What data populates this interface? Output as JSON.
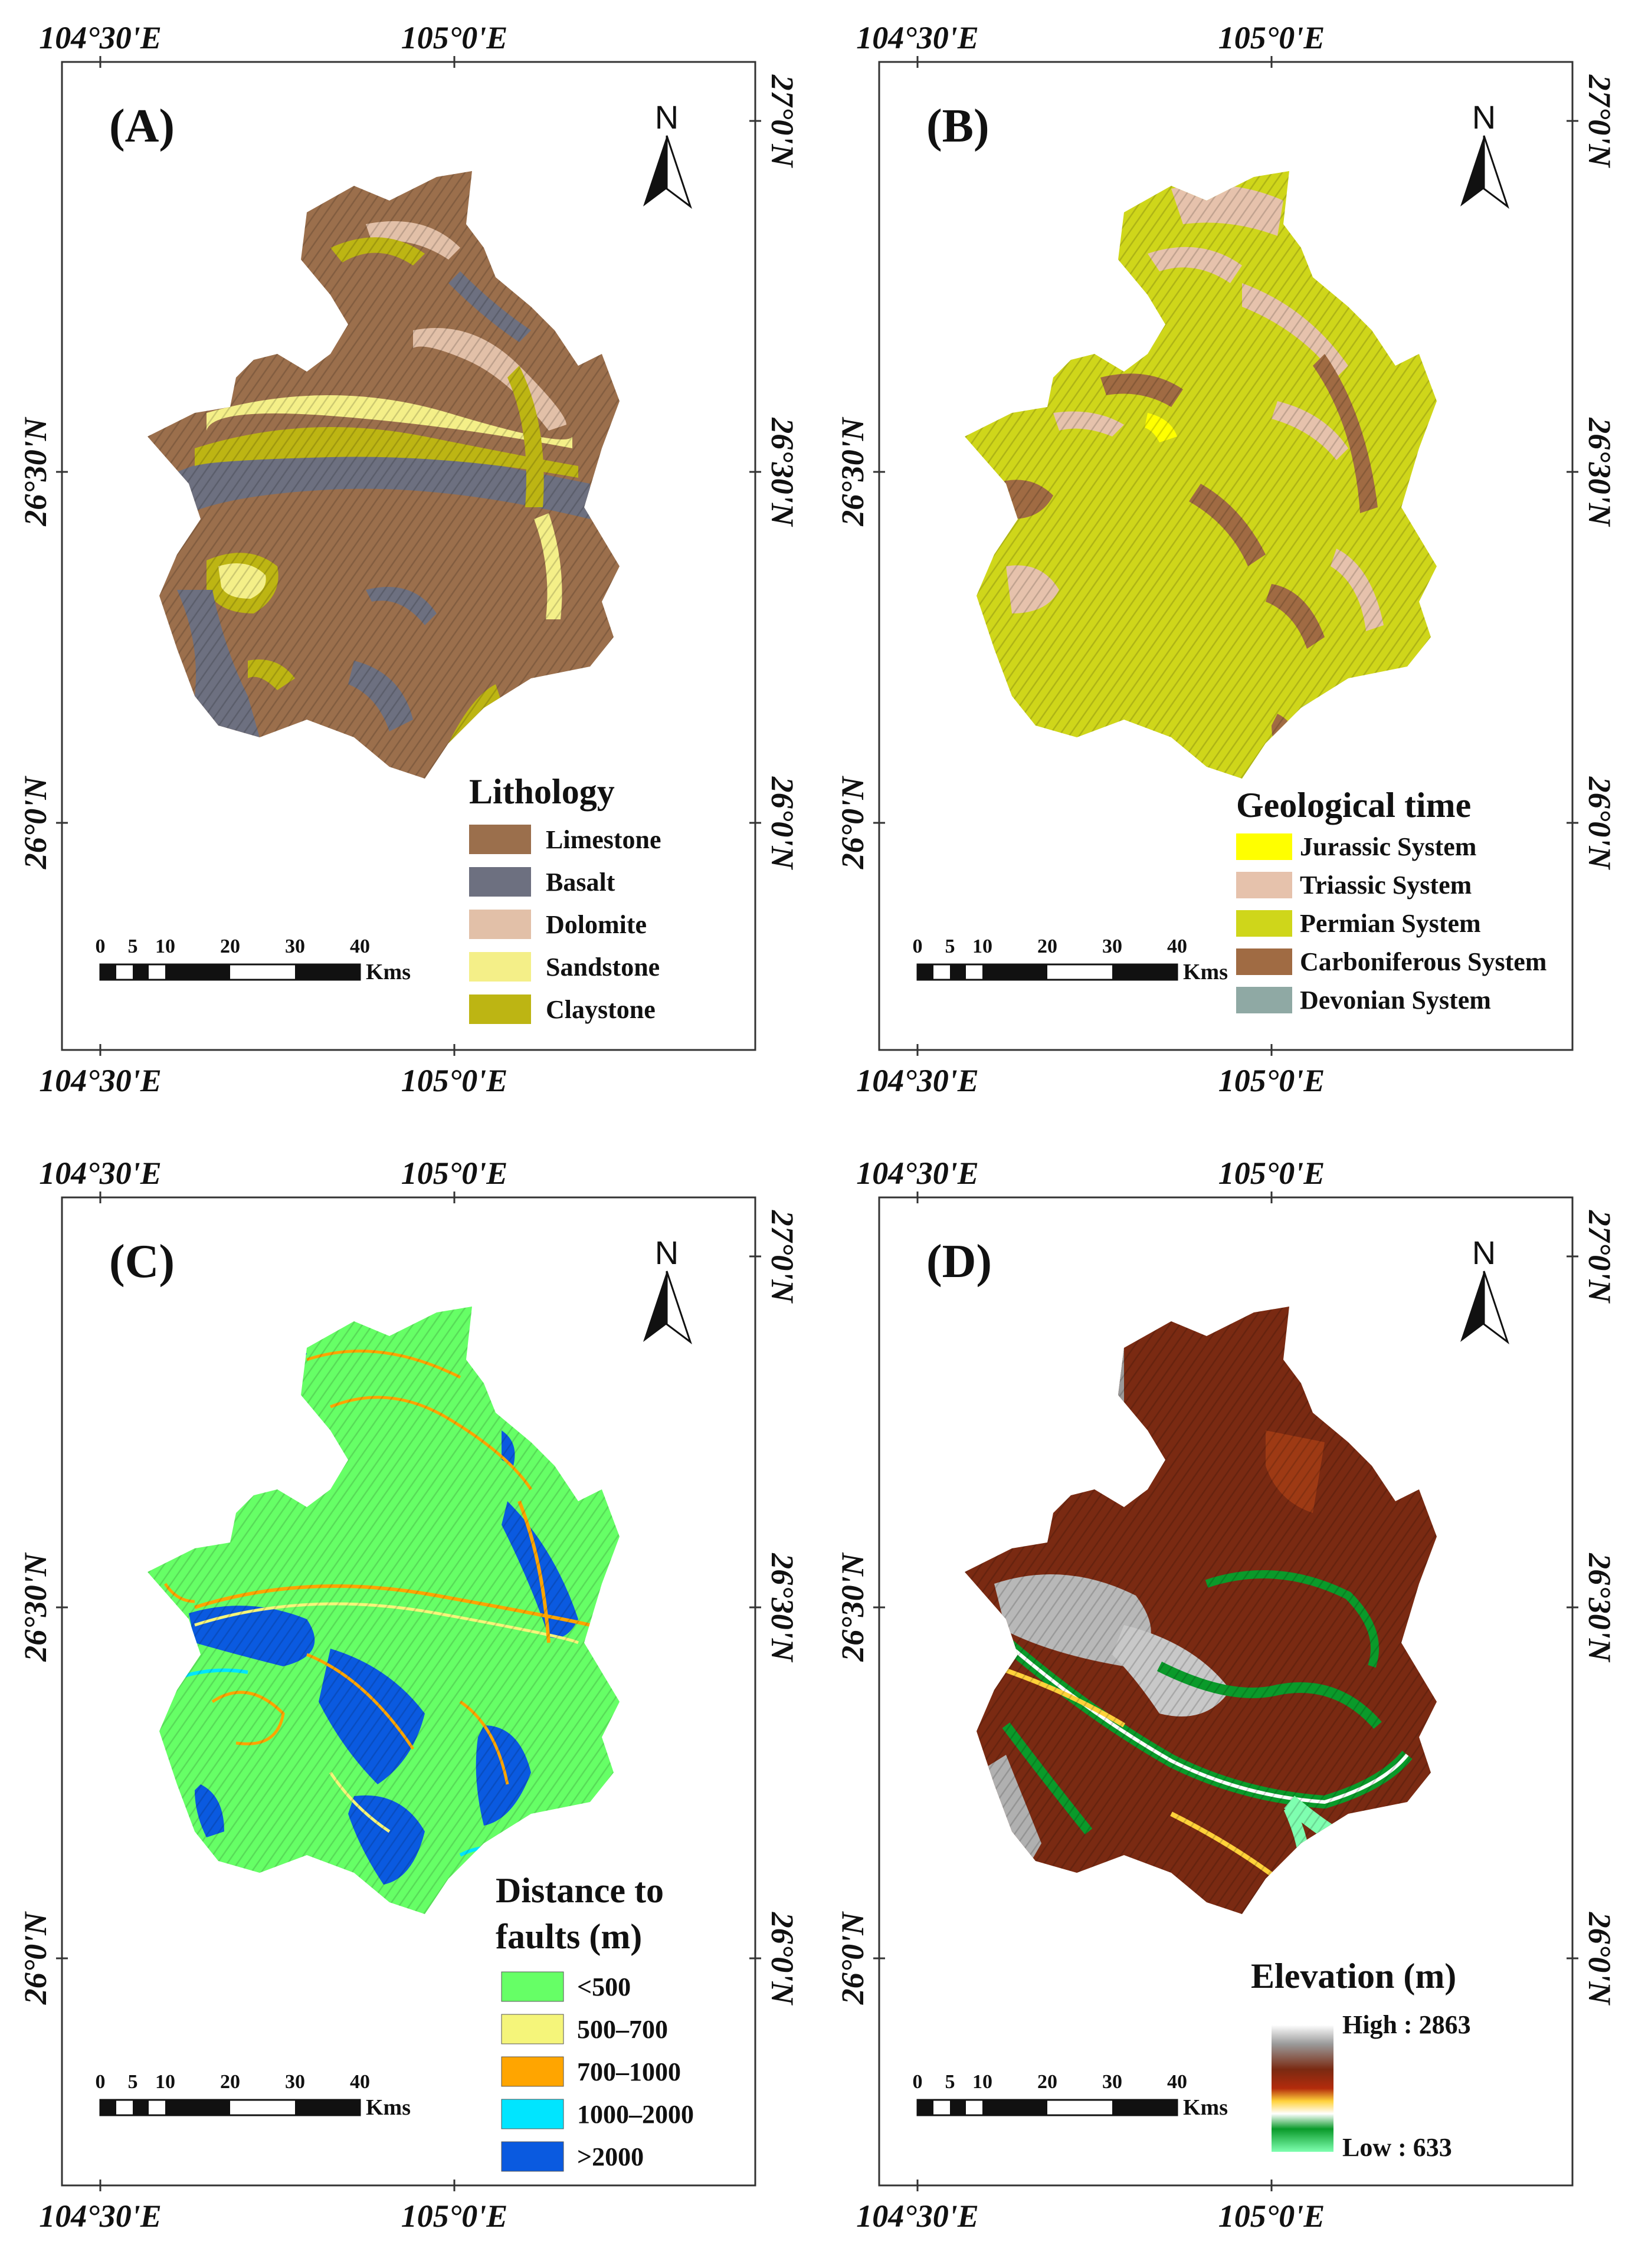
{
  "colors": {
    "frame": "#333333",
    "text": "#111111"
  },
  "panels": [
    {
      "id": "A",
      "label": "(A)",
      "top_labels": [
        "104°30'E",
        "105°0'E"
      ],
      "bottom_labels": [
        "104°30'E",
        "105°0'E"
      ],
      "left_labels": [
        "26°30'N",
        "26°0'N"
      ],
      "right_labels": [
        "27°0'N",
        "26°30'N",
        "26°0'N"
      ],
      "north": "N",
      "scale": {
        "ticks": [
          "0",
          "5",
          "10",
          "20",
          "30",
          "40"
        ],
        "unit": "Kms"
      },
      "legend_title": "Lithology",
      "legend": [
        {
          "label": "Limestone",
          "color": "#9b6f4c"
        },
        {
          "label": "Basalt",
          "color": "#6d7080"
        },
        {
          "label": "Dolomite",
          "color": "#e2c0a8"
        },
        {
          "label": "Sandstone",
          "color": "#f4ef88"
        },
        {
          "label": "Claystone",
          "color": "#bdb513"
        }
      ]
    },
    {
      "id": "B",
      "label": "(B)",
      "top_labels": [
        "104°30'E",
        "105°0'E"
      ],
      "bottom_labels": [
        "104°30'E",
        "105°0'E"
      ],
      "left_labels": [
        "26°30'N",
        "26°0'N"
      ],
      "right_labels": [
        "27°0'N",
        "26°30'N",
        "26°0'N"
      ],
      "north": "N",
      "scale": {
        "ticks": [
          "0",
          "5",
          "10",
          "20",
          "30",
          "40"
        ],
        "unit": "Kms"
      },
      "legend_title": "Geological time",
      "legend": [
        {
          "label": "Jurassic System",
          "color": "#ffff00"
        },
        {
          "label": "Triassic System",
          "color": "#e6c2ac"
        },
        {
          "label": "Permian System",
          "color": "#cfd61a"
        },
        {
          "label": "Carboniferous System",
          "color": "#a06b43"
        },
        {
          "label": "Devonian System",
          "color": "#8fa9a4"
        }
      ]
    },
    {
      "id": "C",
      "label": "(C)",
      "top_labels": [
        "104°30'E",
        "105°0'E"
      ],
      "bottom_labels": [
        "104°30'E",
        "105°0'E"
      ],
      "left_labels": [
        "26°30'N",
        "26°0'N"
      ],
      "right_labels": [
        "27°0'N",
        "26°30'N",
        "26°0'N"
      ],
      "north": "N",
      "scale": {
        "ticks": [
          "0",
          "5",
          "10",
          "20",
          "30",
          "40"
        ],
        "unit": "Kms"
      },
      "legend_title_lines": [
        "Distance to",
        "faults (m)"
      ],
      "legend": [
        {
          "label": "<500",
          "color": "#66ff66"
        },
        {
          "label": "500–700",
          "color": "#f5f57a"
        },
        {
          "label": "700–1000",
          "color": "#ffa500"
        },
        {
          "label": "1000–2000",
          "color": "#00e5ff"
        },
        {
          "label": ">2000",
          "color": "#0a5ae0"
        }
      ]
    },
    {
      "id": "D",
      "label": "(D)",
      "top_labels": [
        "104°30'E",
        "105°0'E"
      ],
      "bottom_labels": [
        "104°30'E",
        "105°0'E"
      ],
      "left_labels": [
        "26°30'N",
        "26°0'N"
      ],
      "right_labels": [
        "27°0'N",
        "26°30'N",
        "26°0'N"
      ],
      "north": "N",
      "scale": {
        "ticks": [
          "0",
          "5",
          "10",
          "20",
          "30",
          "40"
        ],
        "unit": "Kms"
      },
      "legend_title": "Elevation (m)",
      "ramp_high": "High : 2863",
      "ramp_low": "Low : 633",
      "ramp_colors": [
        "#ffffff",
        "#9a9a9a",
        "#7a2a12",
        "#b32b0c",
        "#ffd23a",
        "#ffffff",
        "#0a9a2a",
        "#7fffb0"
      ]
    }
  ]
}
